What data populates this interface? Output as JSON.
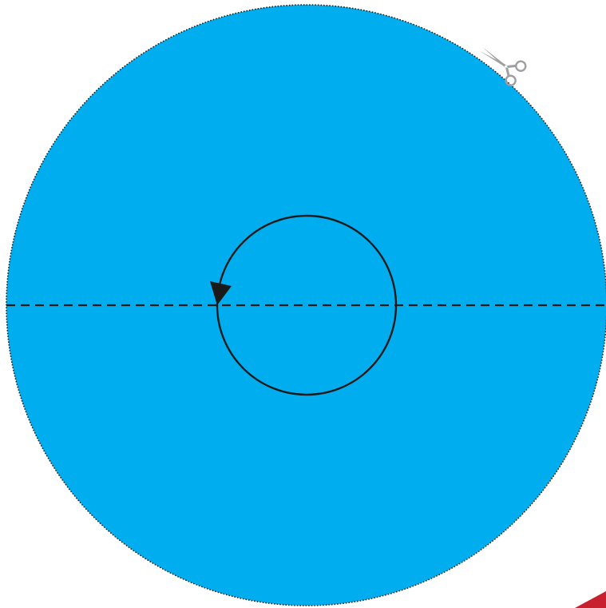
{
  "template": {
    "disc_color": "#00AEEF",
    "outline_color": "#222222",
    "fold_line_color": "#1a1a1a",
    "rotation_arrow_color": "#1a1a1a",
    "scissors_color": "#9d9fa2",
    "corner_tab_color": "#C8202E",
    "icons": [
      "scissors-icon",
      "rotation-arrow-icon"
    ]
  }
}
